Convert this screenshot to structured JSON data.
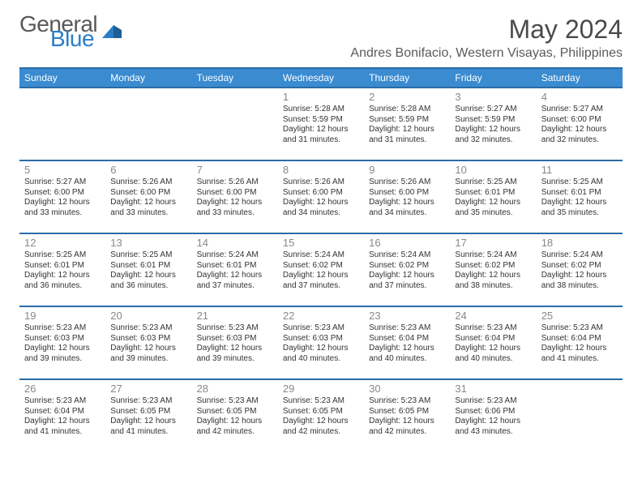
{
  "brand": {
    "word1": "General",
    "word2": "Blue"
  },
  "title": "May 2024",
  "location": "Andres Bonifacio, Western Visayas, Philippines",
  "colors": {
    "header_bg": "#3a8bd0",
    "header_border": "#2a6da8",
    "logo_gray": "#585858",
    "logo_blue": "#2a7ec6",
    "text": "#333333",
    "daynum": "#888888"
  },
  "weekdays": [
    "Sunday",
    "Monday",
    "Tuesday",
    "Wednesday",
    "Thursday",
    "Friday",
    "Saturday"
  ],
  "weeks": [
    [
      null,
      null,
      null,
      {
        "n": "1",
        "sr": "5:28 AM",
        "ss": "5:59 PM",
        "dl": "12 hours and 31 minutes."
      },
      {
        "n": "2",
        "sr": "5:28 AM",
        "ss": "5:59 PM",
        "dl": "12 hours and 31 minutes."
      },
      {
        "n": "3",
        "sr": "5:27 AM",
        "ss": "5:59 PM",
        "dl": "12 hours and 32 minutes."
      },
      {
        "n": "4",
        "sr": "5:27 AM",
        "ss": "6:00 PM",
        "dl": "12 hours and 32 minutes."
      }
    ],
    [
      {
        "n": "5",
        "sr": "5:27 AM",
        "ss": "6:00 PM",
        "dl": "12 hours and 33 minutes."
      },
      {
        "n": "6",
        "sr": "5:26 AM",
        "ss": "6:00 PM",
        "dl": "12 hours and 33 minutes."
      },
      {
        "n": "7",
        "sr": "5:26 AM",
        "ss": "6:00 PM",
        "dl": "12 hours and 33 minutes."
      },
      {
        "n": "8",
        "sr": "5:26 AM",
        "ss": "6:00 PM",
        "dl": "12 hours and 34 minutes."
      },
      {
        "n": "9",
        "sr": "5:26 AM",
        "ss": "6:00 PM",
        "dl": "12 hours and 34 minutes."
      },
      {
        "n": "10",
        "sr": "5:25 AM",
        "ss": "6:01 PM",
        "dl": "12 hours and 35 minutes."
      },
      {
        "n": "11",
        "sr": "5:25 AM",
        "ss": "6:01 PM",
        "dl": "12 hours and 35 minutes."
      }
    ],
    [
      {
        "n": "12",
        "sr": "5:25 AM",
        "ss": "6:01 PM",
        "dl": "12 hours and 36 minutes."
      },
      {
        "n": "13",
        "sr": "5:25 AM",
        "ss": "6:01 PM",
        "dl": "12 hours and 36 minutes."
      },
      {
        "n": "14",
        "sr": "5:24 AM",
        "ss": "6:01 PM",
        "dl": "12 hours and 37 minutes."
      },
      {
        "n": "15",
        "sr": "5:24 AM",
        "ss": "6:02 PM",
        "dl": "12 hours and 37 minutes."
      },
      {
        "n": "16",
        "sr": "5:24 AM",
        "ss": "6:02 PM",
        "dl": "12 hours and 37 minutes."
      },
      {
        "n": "17",
        "sr": "5:24 AM",
        "ss": "6:02 PM",
        "dl": "12 hours and 38 minutes."
      },
      {
        "n": "18",
        "sr": "5:24 AM",
        "ss": "6:02 PM",
        "dl": "12 hours and 38 minutes."
      }
    ],
    [
      {
        "n": "19",
        "sr": "5:23 AM",
        "ss": "6:03 PM",
        "dl": "12 hours and 39 minutes."
      },
      {
        "n": "20",
        "sr": "5:23 AM",
        "ss": "6:03 PM",
        "dl": "12 hours and 39 minutes."
      },
      {
        "n": "21",
        "sr": "5:23 AM",
        "ss": "6:03 PM",
        "dl": "12 hours and 39 minutes."
      },
      {
        "n": "22",
        "sr": "5:23 AM",
        "ss": "6:03 PM",
        "dl": "12 hours and 40 minutes."
      },
      {
        "n": "23",
        "sr": "5:23 AM",
        "ss": "6:04 PM",
        "dl": "12 hours and 40 minutes."
      },
      {
        "n": "24",
        "sr": "5:23 AM",
        "ss": "6:04 PM",
        "dl": "12 hours and 40 minutes."
      },
      {
        "n": "25",
        "sr": "5:23 AM",
        "ss": "6:04 PM",
        "dl": "12 hours and 41 minutes."
      }
    ],
    [
      {
        "n": "26",
        "sr": "5:23 AM",
        "ss": "6:04 PM",
        "dl": "12 hours and 41 minutes."
      },
      {
        "n": "27",
        "sr": "5:23 AM",
        "ss": "6:05 PM",
        "dl": "12 hours and 41 minutes."
      },
      {
        "n": "28",
        "sr": "5:23 AM",
        "ss": "6:05 PM",
        "dl": "12 hours and 42 minutes."
      },
      {
        "n": "29",
        "sr": "5:23 AM",
        "ss": "6:05 PM",
        "dl": "12 hours and 42 minutes."
      },
      {
        "n": "30",
        "sr": "5:23 AM",
        "ss": "6:05 PM",
        "dl": "12 hours and 42 minutes."
      },
      {
        "n": "31",
        "sr": "5:23 AM",
        "ss": "6:06 PM",
        "dl": "12 hours and 43 minutes."
      },
      null
    ]
  ],
  "labels": {
    "sunrise": "Sunrise: ",
    "sunset": "Sunset: ",
    "daylight": "Daylight: "
  }
}
